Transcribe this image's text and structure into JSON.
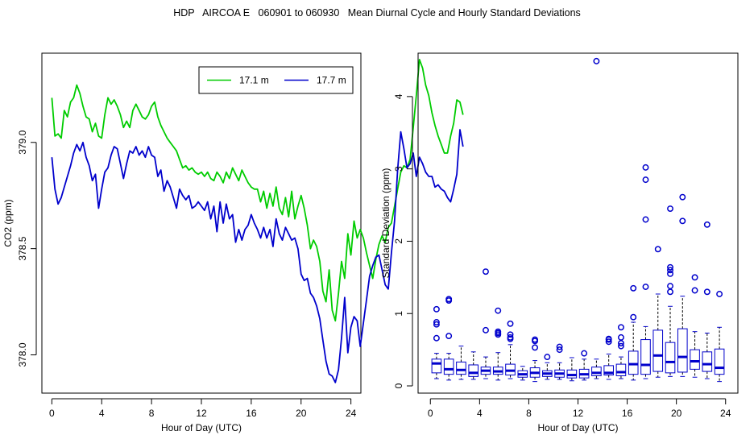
{
  "page_title": "HDP   AIRCOA E   060901 to 060930   Mean Diurnal Cycle and Hourly Standard Deviations",
  "colors": {
    "green": "#00cc00",
    "blue": "#0000cc",
    "axis": "#000000"
  },
  "chart_data": [
    {
      "type": "line",
      "xlabel": "Hour of Day (UTC)",
      "ylabel": "CO2 (ppm)",
      "xlim": [
        -0.8,
        24.8
      ],
      "ylim": [
        377.82,
        379.42
      ],
      "x_ticks": [
        0,
        4,
        8,
        12,
        16,
        20,
        24
      ],
      "y_ticks": [
        378.0,
        378.5,
        379.0
      ],
      "y_tick_labels": [
        "378.0",
        "378.5",
        "379.0"
      ],
      "legend_position": "top-right",
      "x_step": 0.25,
      "series": [
        {
          "name": "17.1 m",
          "color": "#00cc00",
          "values": [
            379.21,
            379.03,
            379.04,
            379.02,
            379.15,
            379.12,
            379.19,
            379.21,
            379.27,
            379.23,
            379.17,
            379.12,
            379.11,
            379.05,
            379.09,
            379.03,
            379.02,
            379.13,
            379.21,
            379.18,
            379.2,
            379.17,
            379.13,
            379.07,
            379.1,
            379.07,
            379.15,
            379.18,
            379.15,
            379.12,
            379.11,
            379.13,
            379.17,
            379.19,
            379.12,
            379.08,
            379.05,
            379.02,
            379.0,
            378.98,
            378.96,
            378.92,
            378.88,
            378.89,
            378.87,
            378.88,
            378.86,
            378.85,
            378.86,
            378.84,
            378.86,
            378.83,
            378.82,
            378.86,
            378.84,
            378.81,
            378.86,
            378.83,
            378.88,
            378.85,
            378.82,
            378.87,
            378.84,
            378.81,
            378.79,
            378.78,
            378.78,
            378.72,
            378.77,
            378.69,
            378.76,
            378.7,
            378.79,
            378.69,
            378.66,
            378.74,
            378.65,
            378.77,
            378.64,
            378.7,
            378.75,
            378.69,
            378.61,
            378.5,
            378.54,
            378.51,
            378.44,
            378.3,
            378.25,
            378.4,
            378.21,
            378.16,
            378.29,
            378.44,
            378.36,
            378.57,
            378.47,
            378.63,
            378.55,
            378.59,
            378.55,
            378.48,
            378.42,
            378.36,
            378.45,
            378.52,
            378.56,
            378.53,
            378.6,
            378.62,
            378.7,
            378.78,
            378.86,
            378.89,
            378.88,
            378.92,
            379.07,
            379.22,
            379.39,
            379.35,
            379.27,
            379.22,
            379.14,
            379.08,
            379.03,
            378.99,
            378.95,
            378.95,
            379.03,
            379.09,
            379.2,
            379.19,
            379.13
          ]
        },
        {
          "name": "17.7 m",
          "color": "#0000cc",
          "values": [
            378.93,
            378.78,
            378.71,
            378.74,
            378.79,
            378.84,
            378.89,
            378.95,
            378.99,
            378.96,
            379.0,
            378.93,
            378.89,
            378.82,
            378.85,
            378.69,
            378.78,
            378.86,
            378.88,
            378.94,
            378.98,
            378.97,
            378.9,
            378.83,
            378.9,
            378.96,
            378.95,
            378.98,
            378.94,
            378.96,
            378.93,
            378.98,
            378.94,
            378.93,
            378.84,
            378.87,
            378.77,
            378.82,
            378.79,
            378.74,
            378.69,
            378.78,
            378.75,
            378.73,
            378.75,
            378.69,
            378.7,
            378.72,
            378.7,
            378.68,
            378.72,
            378.64,
            378.7,
            378.58,
            378.72,
            378.62,
            378.71,
            378.64,
            378.66,
            378.53,
            378.59,
            378.54,
            378.59,
            378.61,
            378.66,
            378.62,
            378.59,
            378.55,
            378.6,
            378.55,
            378.59,
            378.51,
            378.64,
            378.57,
            378.54,
            378.6,
            378.57,
            378.54,
            378.55,
            378.5,
            378.38,
            378.35,
            378.36,
            378.29,
            378.27,
            378.23,
            378.17,
            378.07,
            377.97,
            377.91,
            377.9,
            377.87,
            377.93,
            378.08,
            378.27,
            378.01,
            378.13,
            378.18,
            378.16,
            378.04,
            378.15,
            378.26,
            378.37,
            378.42,
            378.46,
            378.47,
            378.4,
            378.33,
            378.31,
            378.48,
            378.63,
            378.87,
            379.05,
            378.97,
            378.88,
            378.9,
            378.95,
            378.84,
            378.93,
            378.9,
            378.86,
            378.84,
            378.84,
            378.79,
            378.8,
            378.78,
            378.77,
            378.74,
            378.72,
            378.78,
            378.85,
            379.06,
            378.98
          ]
        }
      ]
    },
    {
      "type": "box",
      "xlabel": "Hour of Day (UTC)",
      "ylabel": "Standard Deviation (ppm)",
      "xlim": [
        -1.0,
        25.0
      ],
      "ylim": [
        -0.1,
        4.6
      ],
      "x_ticks": [
        0,
        4,
        8,
        12,
        16,
        20,
        24
      ],
      "y_ticks": [
        0,
        1,
        2,
        3,
        4
      ],
      "y_tick_labels": [
        "0",
        "1",
        "2",
        "3",
        "4"
      ],
      "boxes": [
        {
          "hour": 0.5,
          "min": 0.1,
          "q1": 0.18,
          "median": 0.31,
          "q3": 0.37,
          "max": 0.45,
          "outliers": [
            0.66,
            0.85,
            0.88,
            1.06
          ]
        },
        {
          "hour": 1.5,
          "min": 0.08,
          "q1": 0.16,
          "median": 0.23,
          "q3": 0.37,
          "max": 0.45,
          "outliers": [
            0.69,
            1.18,
            1.2
          ]
        },
        {
          "hour": 2.5,
          "min": 0.09,
          "q1": 0.16,
          "median": 0.22,
          "q3": 0.33,
          "max": 0.55,
          "outliers": []
        },
        {
          "hour": 3.5,
          "min": 0.09,
          "q1": 0.13,
          "median": 0.18,
          "q3": 0.29,
          "max": 0.47,
          "outliers": []
        },
        {
          "hour": 4.5,
          "min": 0.1,
          "q1": 0.16,
          "median": 0.21,
          "q3": 0.26,
          "max": 0.4,
          "outliers": [
            0.77,
            1.58
          ]
        },
        {
          "hour": 5.5,
          "min": 0.08,
          "q1": 0.16,
          "median": 0.2,
          "q3": 0.26,
          "max": 0.46,
          "outliers": [
            0.71,
            0.73,
            0.75,
            1.04
          ]
        },
        {
          "hour": 6.5,
          "min": 0.1,
          "q1": 0.15,
          "median": 0.21,
          "q3": 0.3,
          "max": 0.57,
          "outliers": [
            0.65,
            0.67,
            0.71,
            0.86
          ]
        },
        {
          "hour": 7.5,
          "min": 0.08,
          "q1": 0.12,
          "median": 0.16,
          "q3": 0.21,
          "max": 0.27,
          "outliers": []
        },
        {
          "hour": 8.5,
          "min": 0.06,
          "q1": 0.12,
          "median": 0.18,
          "q3": 0.25,
          "max": 0.35,
          "outliers": [
            0.53,
            0.62,
            0.64
          ]
        },
        {
          "hour": 9.5,
          "min": 0.09,
          "q1": 0.13,
          "median": 0.17,
          "q3": 0.21,
          "max": 0.32,
          "outliers": [
            0.4
          ]
        },
        {
          "hour": 10.5,
          "min": 0.09,
          "q1": 0.12,
          "median": 0.17,
          "q3": 0.22,
          "max": 0.32,
          "outliers": [
            0.5,
            0.54
          ]
        },
        {
          "hour": 11.5,
          "min": 0.07,
          "q1": 0.11,
          "median": 0.15,
          "q3": 0.22,
          "max": 0.39,
          "outliers": []
        },
        {
          "hour": 12.5,
          "min": 0.08,
          "q1": 0.11,
          "median": 0.16,
          "q3": 0.23,
          "max": 0.37,
          "outliers": [
            0.45
          ]
        },
        {
          "hour": 13.5,
          "min": 0.1,
          "q1": 0.14,
          "median": 0.18,
          "q3": 0.26,
          "max": 0.37,
          "outliers": [
            4.49
          ]
        },
        {
          "hour": 14.5,
          "min": 0.09,
          "q1": 0.15,
          "median": 0.18,
          "q3": 0.28,
          "max": 0.44,
          "outliers": [
            0.61,
            0.64,
            0.65
          ]
        },
        {
          "hour": 15.5,
          "min": 0.1,
          "q1": 0.14,
          "median": 0.19,
          "q3": 0.3,
          "max": 0.4,
          "outliers": [
            0.55,
            0.59,
            0.67,
            0.81
          ]
        },
        {
          "hour": 16.5,
          "min": 0.08,
          "q1": 0.16,
          "median": 0.3,
          "q3": 0.48,
          "max": 0.88,
          "outliers": [
            0.95,
            1.35
          ]
        },
        {
          "hour": 17.5,
          "min": 0.1,
          "q1": 0.16,
          "median": 0.29,
          "q3": 0.64,
          "max": 0.82,
          "outliers": [
            1.37,
            2.3,
            2.85,
            3.02
          ]
        },
        {
          "hour": 18.5,
          "min": 0.12,
          "q1": 0.2,
          "median": 0.42,
          "q3": 0.77,
          "max": 1.27,
          "outliers": [
            1.89
          ]
        },
        {
          "hour": 19.5,
          "min": 0.13,
          "q1": 0.18,
          "median": 0.33,
          "q3": 0.6,
          "max": 1.1,
          "outliers": [
            1.3,
            1.38,
            1.55,
            1.6,
            1.64,
            2.45
          ]
        },
        {
          "hour": 20.5,
          "min": 0.13,
          "q1": 0.19,
          "median": 0.4,
          "q3": 0.79,
          "max": 1.24,
          "outliers": [
            2.28,
            2.61
          ]
        },
        {
          "hour": 21.5,
          "min": 0.12,
          "q1": 0.23,
          "median": 0.34,
          "q3": 0.5,
          "max": 0.75,
          "outliers": [
            1.32,
            1.5
          ]
        },
        {
          "hour": 22.5,
          "min": 0.1,
          "q1": 0.2,
          "median": 0.3,
          "q3": 0.47,
          "max": 0.73,
          "outliers": [
            1.3,
            2.23
          ]
        },
        {
          "hour": 23.5,
          "min": 0.06,
          "q1": 0.16,
          "median": 0.25,
          "q3": 0.51,
          "max": 0.81,
          "outliers": [
            1.27
          ]
        }
      ]
    }
  ]
}
